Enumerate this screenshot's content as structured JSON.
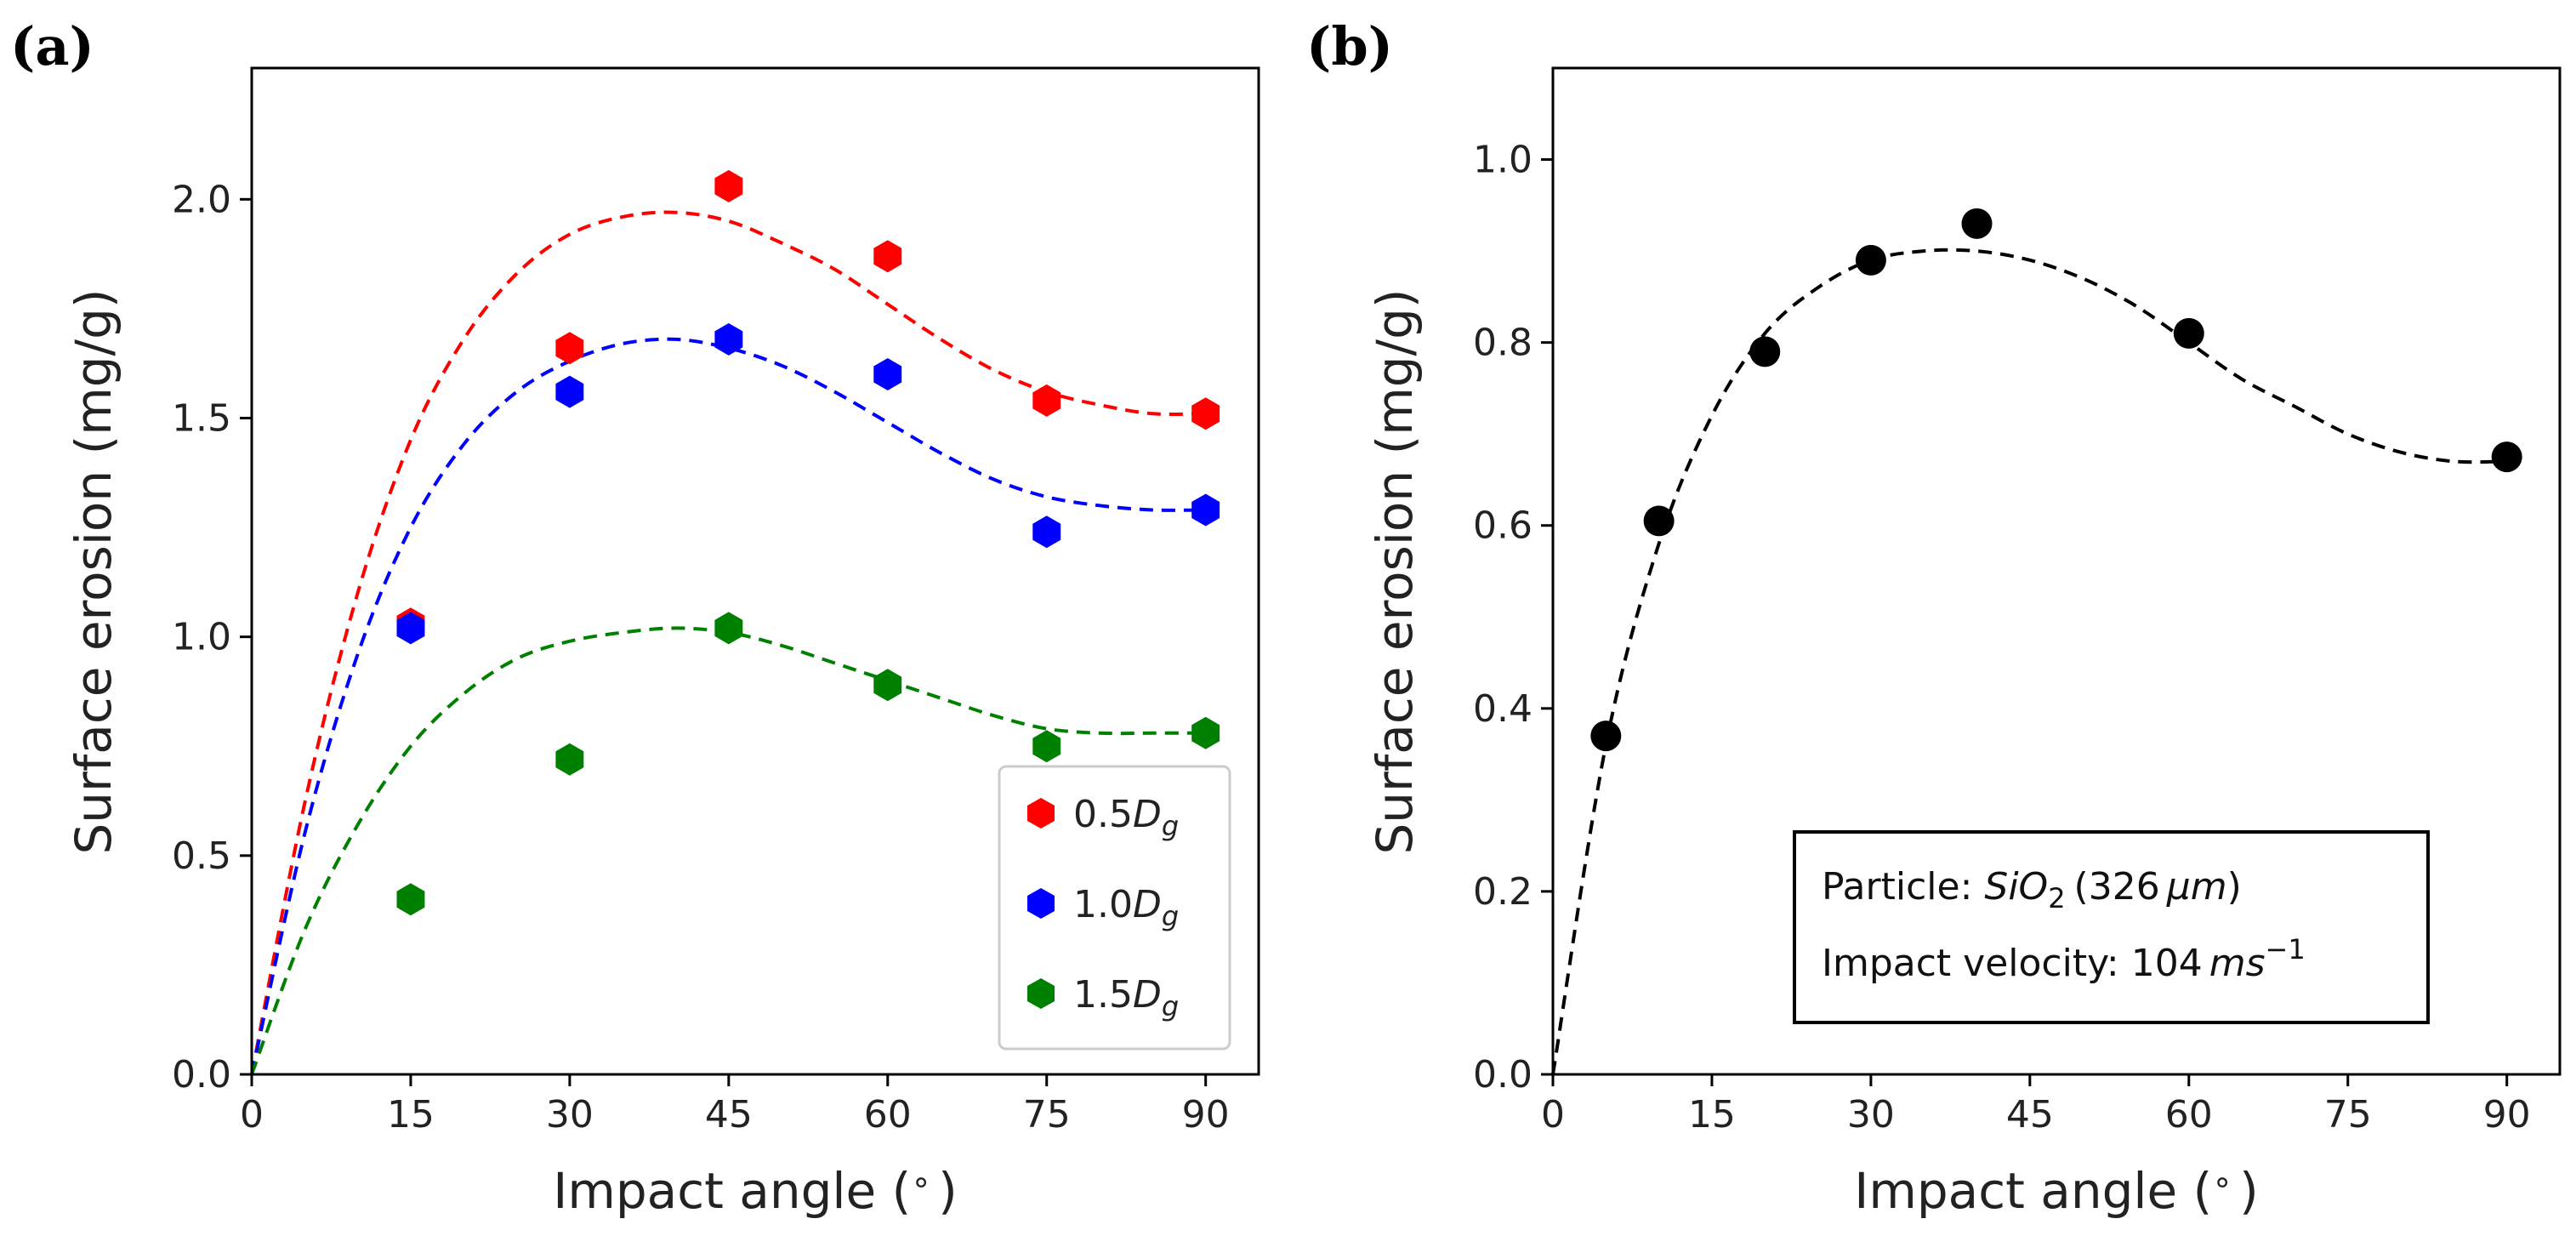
{
  "chart_data": [
    {
      "panel": "(a)",
      "type": "scatter",
      "xlabel_text": "Impact angle (",
      "xlabel_unit": "∘",
      "xlabel_close": ")",
      "ylabel": "Surface erosion (mg/g)",
      "xlim": [
        0,
        95
      ],
      "ylim": [
        0,
        2.3
      ],
      "xticks": [
        0,
        15,
        30,
        45,
        60,
        75,
        90
      ],
      "xtick_labels": [
        "0",
        "15",
        "30",
        "45",
        "60",
        "75",
        "90"
      ],
      "yticks": [
        0.0,
        0.5,
        1.0,
        1.5,
        2.0
      ],
      "ytick_labels": [
        "0.0",
        "0.5",
        "1.0",
        "1.5",
        "2.0"
      ],
      "grid": false,
      "legend_position": "lower-right",
      "series": [
        {
          "name": "0.5D_g",
          "label_base": "0.5",
          "label_var": "D",
          "label_sub": "g",
          "color": "#ff0000",
          "marker": "hexagon",
          "x": [
            15,
            30,
            45,
            60,
            75,
            90
          ],
          "y": [
            1.03,
            1.66,
            2.03,
            1.87,
            1.54,
            1.51
          ],
          "fit": {
            "style": "dashed",
            "x": [
              0,
              5,
              10,
              15,
              20,
              25,
              30,
              35,
              40,
              45,
              50,
              55,
              60,
              65,
              70,
              75,
              80,
              85,
              90
            ],
            "y": [
              0.0,
              0.62,
              1.1,
              1.45,
              1.68,
              1.83,
              1.92,
              1.96,
              1.97,
              1.95,
              1.9,
              1.84,
              1.76,
              1.68,
              1.61,
              1.56,
              1.53,
              1.51,
              1.51
            ]
          }
        },
        {
          "name": "1.0D_g",
          "label_base": "1.0",
          "label_var": "D",
          "label_sub": "g",
          "color": "#0000ff",
          "marker": "hexagon",
          "x": [
            15,
            30,
            45,
            60,
            75,
            90
          ],
          "y": [
            1.02,
            1.56,
            1.68,
            1.6,
            1.24,
            1.29
          ],
          "fit": {
            "style": "dashed",
            "x": [
              0,
              5,
              10,
              15,
              20,
              25,
              30,
              35,
              40,
              45,
              50,
              55,
              60,
              65,
              70,
              75,
              80,
              85,
              90
            ],
            "y": [
              0.0,
              0.55,
              0.96,
              1.25,
              1.44,
              1.56,
              1.63,
              1.67,
              1.68,
              1.66,
              1.62,
              1.56,
              1.49,
              1.42,
              1.36,
              1.32,
              1.3,
              1.29,
              1.29
            ]
          }
        },
        {
          "name": "1.5D_g",
          "label_base": "1.5",
          "label_var": "D",
          "label_sub": "g",
          "color": "#008000",
          "marker": "hexagon",
          "x": [
            15,
            30,
            45,
            60,
            75,
            90
          ],
          "y": [
            0.4,
            0.72,
            1.02,
            0.89,
            0.75,
            0.78
          ],
          "fit": {
            "style": "dashed",
            "x": [
              0,
              5,
              10,
              15,
              20,
              25,
              30,
              35,
              40,
              45,
              50,
              55,
              60,
              65,
              70,
              75,
              80,
              85,
              90
            ],
            "y": [
              0.0,
              0.33,
              0.57,
              0.75,
              0.87,
              0.95,
              0.99,
              1.01,
              1.02,
              1.01,
              0.98,
              0.94,
              0.9,
              0.86,
              0.82,
              0.79,
              0.78,
              0.78,
              0.78
            ]
          }
        }
      ]
    },
    {
      "panel": "(b)",
      "type": "scatter",
      "xlabel_text": "Impact angle (",
      "xlabel_unit": "∘",
      "xlabel_close": ")",
      "ylabel": "Surface erosion (mg/g)",
      "xlim": [
        0,
        95
      ],
      "ylim": [
        0,
        1.1
      ],
      "xticks": [
        0,
        15,
        30,
        45,
        60,
        75,
        90
      ],
      "xtick_labels": [
        "0",
        "15",
        "30",
        "45",
        "60",
        "75",
        "90"
      ],
      "yticks": [
        0.0,
        0.2,
        0.4,
        0.6,
        0.8,
        1.0
      ],
      "ytick_labels": [
        "0.0",
        "0.2",
        "0.4",
        "0.6",
        "0.8",
        "1.0"
      ],
      "grid": false,
      "series": [
        {
          "color": "#000000",
          "marker": "circle",
          "x": [
            5,
            10,
            20,
            30,
            40,
            60,
            90
          ],
          "y": [
            0.37,
            0.605,
            0.79,
            0.89,
            0.93,
            0.81,
            0.675
          ],
          "fit": {
            "style": "dashed",
            "x": [
              0,
              5,
              10,
              15,
              20,
              25,
              30,
              35,
              40,
              45,
              50,
              55,
              60,
              65,
              70,
              75,
              80,
              85,
              90
            ],
            "y": [
              0.0,
              0.36,
              0.58,
              0.72,
              0.81,
              0.86,
              0.89,
              0.9,
              0.9,
              0.89,
              0.87,
              0.84,
              0.8,
              0.76,
              0.73,
              0.7,
              0.68,
              0.67,
              0.67
            ]
          }
        }
      ],
      "annotation": {
        "line1_prefix": "Particle: ",
        "line1_formula_main": "SiO",
        "line1_formula_sub": "2",
        "line1_size": "(326",
        "line1_unit": "μm",
        "line1_close": ")",
        "line2_prefix": "Impact velocity: ",
        "line2_value": "104",
        "line2_unit": "ms",
        "line2_exp": "−1"
      }
    }
  ]
}
